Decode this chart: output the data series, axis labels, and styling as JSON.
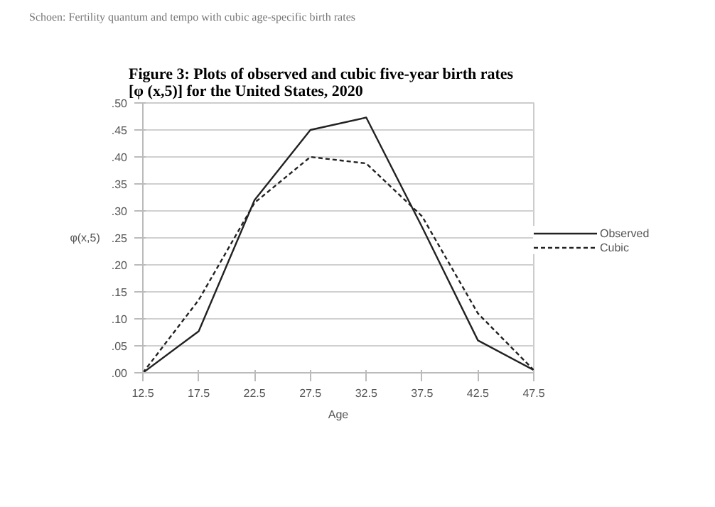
{
  "chart_data": {
    "type": "line",
    "title": "Figure 3: Plots of observed and cubic five-year birth rates [φ (x,5)] for the United States, 2020",
    "annotations": [
      "Schoen: Fertility quantum and tempo with cubic age-specific birth rates"
    ],
    "xlabel": "Age",
    "ylabel": "φ(x,5)",
    "x": [
      12.5,
      17.5,
      22.5,
      27.5,
      32.5,
      37.5,
      42.5,
      47.5
    ],
    "series": [
      {
        "name": "Observed",
        "color": "#222222",
        "line_style": "solid",
        "values": [
          0,
          0.077,
          0.32,
          0.45,
          0.473,
          0.27,
          0.06,
          0.005
        ]
      },
      {
        "name": "Cubic",
        "color": "#222222",
        "line_style": "dashed",
        "values": [
          0,
          0.135,
          0.315,
          0.4,
          0.388,
          0.29,
          0.11,
          0.005
        ]
      }
    ],
    "xlim": [
      12.5,
      47.5
    ],
    "xticks": [
      12.5,
      17.5,
      22.5,
      27.5,
      32.5,
      37.5,
      42.5,
      47.5
    ],
    "ylim": [
      0,
      0.5
    ],
    "yticks": [
      {
        "value": 0,
        "label": ".00"
      },
      {
        "value": 0.05,
        "label": ".05"
      },
      {
        "value": 0.1,
        "label": ".10"
      },
      {
        "value": 0.15,
        "label": ".15"
      },
      {
        "value": 0.2,
        "label": ".20"
      },
      {
        "value": 0.25,
        "label": ".25"
      },
      {
        "value": 0.3,
        "label": ".30"
      },
      {
        "value": 0.35,
        "label": ".35"
      },
      {
        "value": 0.4,
        "label": ".40"
      },
      {
        "value": 0.45,
        "label": ".45"
      },
      {
        "value": 0.5,
        "label": ".50"
      }
    ],
    "grid": "y",
    "legend": "right",
    "marker": "none"
  }
}
